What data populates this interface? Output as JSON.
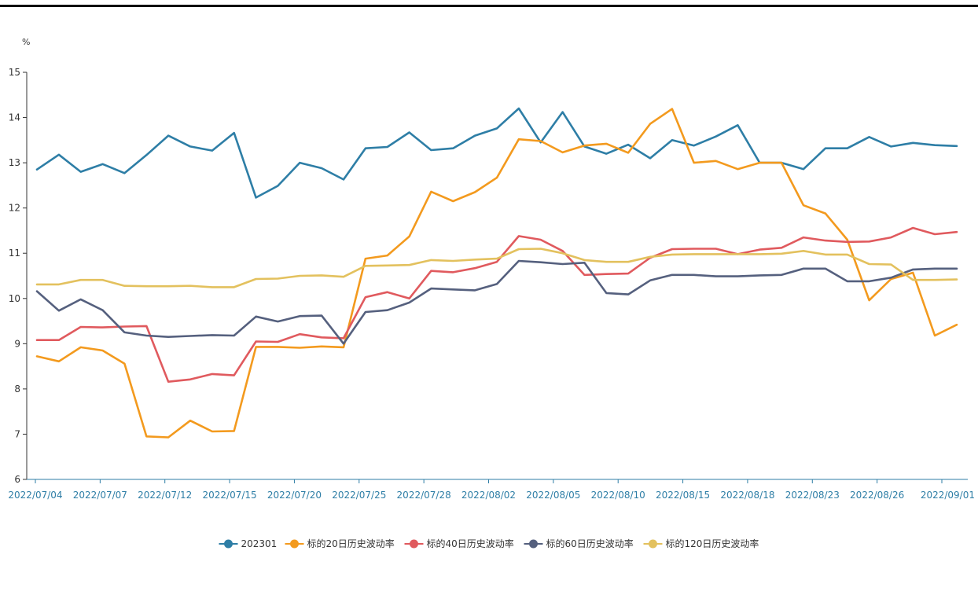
{
  "chart_data": {
    "type": "line",
    "y_unit": "%",
    "ylim": [
      6,
      15
    ],
    "y_ticks": [
      6,
      7,
      8,
      9,
      10,
      11,
      12,
      13,
      14,
      15
    ],
    "x_tick_labels": [
      "2022/07/04",
      "2022/07/07",
      "2022/07/12",
      "2022/07/15",
      "2022/07/20",
      "2022/07/25",
      "2022/07/28",
      "2022/08/02",
      "2022/08/05",
      "2022/08/10",
      "2022/08/15",
      "2022/08/18",
      "2022/08/23",
      "2022/08/26",
      "2022/09/01"
    ],
    "x_count": 43,
    "grid": false,
    "legend_position": "bottom-center",
    "series": [
      {
        "name": "202301",
        "color": "#2e7ea6",
        "values": [
          12.85,
          13.18,
          12.8,
          12.97,
          12.77,
          13.17,
          13.6,
          13.36,
          13.27,
          13.66,
          12.23,
          12.49,
          13.0,
          12.88,
          12.63,
          13.32,
          13.35,
          13.67,
          13.28,
          13.32,
          13.6,
          13.76,
          14.2,
          13.45,
          14.12,
          13.36,
          13.2,
          13.4,
          13.1,
          13.5,
          13.38,
          13.58,
          13.83,
          13.0,
          13.0,
          12.86,
          13.32,
          13.32,
          13.57,
          13.36,
          13.44,
          13.39,
          13.37
        ]
      },
      {
        "name": "标的20日历史波动率",
        "color": "#f39a1e",
        "values": [
          8.72,
          8.61,
          8.92,
          8.85,
          8.56,
          6.95,
          6.93,
          7.3,
          7.06,
          7.07,
          8.93,
          8.93,
          8.91,
          8.94,
          8.92,
          10.88,
          10.95,
          11.37,
          12.36,
          12.15,
          12.35,
          12.67,
          13.52,
          13.48,
          13.23,
          13.38,
          13.42,
          13.22,
          13.86,
          14.19,
          13.0,
          13.04,
          12.86,
          13.0,
          13.0,
          12.06,
          11.88,
          11.3,
          9.96,
          10.43,
          10.57,
          9.18,
          9.42
        ]
      },
      {
        "name": "标的40日历史波动率",
        "color": "#e05a5e",
        "values": [
          9.08,
          9.08,
          9.37,
          9.36,
          9.38,
          9.39,
          8.16,
          8.21,
          8.33,
          8.3,
          9.05,
          9.04,
          9.21,
          9.14,
          9.12,
          10.03,
          10.14,
          10.0,
          10.61,
          10.58,
          10.67,
          10.81,
          11.38,
          11.3,
          11.05,
          10.52,
          10.54,
          10.55,
          10.9,
          11.09,
          11.1,
          11.1,
          10.98,
          11.08,
          11.12,
          11.35,
          11.28,
          11.25,
          11.26,
          11.35,
          11.56,
          11.42,
          11.47
        ]
      },
      {
        "name": "标的60日历史波动率",
        "color": "#55607e",
        "values": [
          10.16,
          9.73,
          9.98,
          9.74,
          9.25,
          9.18,
          9.15,
          9.17,
          9.19,
          9.18,
          9.6,
          9.49,
          9.61,
          9.62,
          9.0,
          9.7,
          9.74,
          9.91,
          10.22,
          10.2,
          10.18,
          10.32,
          10.83,
          10.8,
          10.76,
          10.79,
          10.12,
          10.09,
          10.4,
          10.52,
          10.52,
          10.49,
          10.49,
          10.51,
          10.52,
          10.66,
          10.66,
          10.38,
          10.38,
          10.46,
          10.64,
          10.66,
          10.66
        ]
      },
      {
        "name": "标的120日历史波动率",
        "color": "#e3c15e",
        "values": [
          10.31,
          10.31,
          10.41,
          10.41,
          10.28,
          10.27,
          10.27,
          10.28,
          10.25,
          10.25,
          10.43,
          10.44,
          10.5,
          10.51,
          10.48,
          10.72,
          10.73,
          10.74,
          10.85,
          10.83,
          10.86,
          10.88,
          11.09,
          11.1,
          11.0,
          10.85,
          10.81,
          10.81,
          10.92,
          10.97,
          10.98,
          10.98,
          10.98,
          10.98,
          10.99,
          11.05,
          10.97,
          10.97,
          10.76,
          10.75,
          10.41,
          10.41,
          10.42
        ]
      }
    ]
  }
}
